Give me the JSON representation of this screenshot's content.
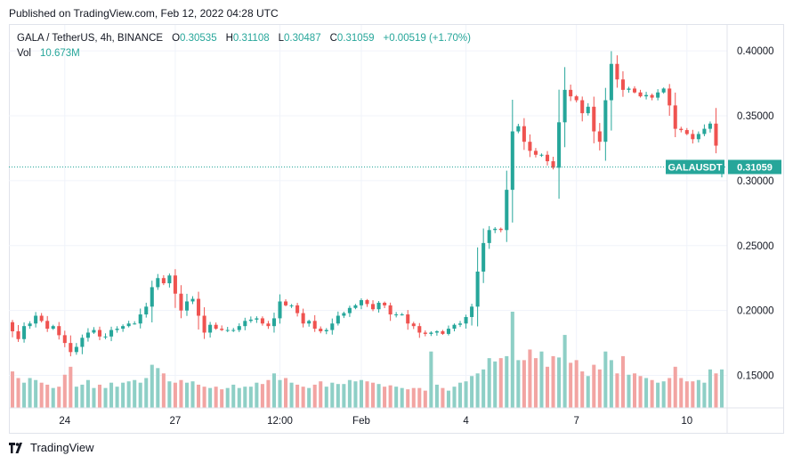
{
  "header": {
    "published": "Published on TradingView.com, Feb 12, 2022 04:28 UTC"
  },
  "legend": {
    "symbol": "GALA / TetherUS, 4h, BINANCE",
    "o_label": "O",
    "o": "0.30535",
    "h_label": "H",
    "h": "0.31108",
    "l_label": "L",
    "l": "0.30487",
    "c_label": "C",
    "c": "0.31059",
    "change": "+0.00519 (+1.70%)",
    "vol_label": "Vol",
    "vol": "10.673M"
  },
  "price_tag": {
    "symbol": "GALAUSDT",
    "price": "0.31059",
    "value": 0.31059
  },
  "footer": {
    "brand": "TradingView"
  },
  "colors": {
    "up": "#26a69a",
    "down": "#ef5350",
    "vol_up": "#8ecfc6",
    "vol_down": "#f2a4a2",
    "grid": "#f0f3fa",
    "text": "#131722"
  },
  "chart_data": {
    "type": "candlestick",
    "ylim": [
      0.125,
      0.42
    ],
    "yticks": [
      "0.40000",
      "0.35000",
      "0.30000",
      "0.25000",
      "0.20000",
      "0.15000"
    ],
    "xticks": [
      "24",
      "27",
      "12:00",
      "Feb",
      "4",
      "7",
      "10"
    ],
    "grid": true,
    "last_price": 0.31059,
    "closes": [
      0.184,
      0.178,
      0.188,
      0.19,
      0.196,
      0.192,
      0.186,
      0.188,
      0.181,
      0.175,
      0.168,
      0.172,
      0.179,
      0.183,
      0.185,
      0.18,
      0.18,
      0.185,
      0.186,
      0.188,
      0.19,
      0.19,
      0.197,
      0.203,
      0.218,
      0.225,
      0.221,
      0.227,
      0.213,
      0.2,
      0.207,
      0.209,
      0.196,
      0.183,
      0.189,
      0.186,
      0.185,
      0.185,
      0.185,
      0.188,
      0.192,
      0.193,
      0.194,
      0.19,
      0.188,
      0.194,
      0.207,
      0.204,
      0.204,
      0.198,
      0.19,
      0.192,
      0.186,
      0.184,
      0.185,
      0.19,
      0.196,
      0.198,
      0.202,
      0.204,
      0.208,
      0.205,
      0.201,
      0.206,
      0.204,
      0.197,
      0.197,
      0.197,
      0.19,
      0.188,
      0.183,
      0.182,
      0.183,
      0.184,
      0.182,
      0.186,
      0.189,
      0.19,
      0.195,
      0.203,
      0.23,
      0.252,
      0.262,
      0.263,
      0.262,
      0.293,
      0.338,
      0.342,
      0.33,
      0.323,
      0.32,
      0.32,
      0.315,
      0.31,
      0.345,
      0.37,
      0.365,
      0.362,
      0.352,
      0.357,
      0.338,
      0.33,
      0.362,
      0.39,
      0.378,
      0.37,
      0.371,
      0.368,
      0.365,
      0.366,
      0.364,
      0.368,
      0.371,
      0.358,
      0.34,
      0.339,
      0.336,
      0.332,
      0.336,
      0.34,
      0.344,
      0.327,
      0.31059
    ],
    "volume_note": "Vol 10.673M",
    "volumes": [
      0.55,
      0.45,
      0.38,
      0.45,
      0.42,
      0.38,
      0.35,
      0.3,
      0.32,
      0.5,
      0.62,
      0.32,
      0.35,
      0.42,
      0.3,
      0.35,
      0.3,
      0.38,
      0.32,
      0.38,
      0.4,
      0.42,
      0.38,
      0.45,
      0.65,
      0.6,
      0.52,
      0.4,
      0.38,
      0.42,
      0.38,
      0.4,
      0.35,
      0.32,
      0.3,
      0.32,
      0.28,
      0.3,
      0.35,
      0.3,
      0.32,
      0.32,
      0.38,
      0.36,
      0.42,
      0.52,
      0.42,
      0.45,
      0.38,
      0.35,
      0.32,
      0.3,
      0.35,
      0.4,
      0.32,
      0.38,
      0.36,
      0.36,
      0.42,
      0.4,
      0.42,
      0.4,
      0.38,
      0.36,
      0.32,
      0.34,
      0.32,
      0.3,
      0.28,
      0.3,
      0.3,
      0.26,
      0.85,
      0.35,
      0.3,
      0.26,
      0.32,
      0.38,
      0.4,
      0.48,
      0.52,
      0.58,
      0.75,
      0.7,
      0.75,
      0.78,
      1.45,
      0.72,
      0.72,
      0.88,
      0.75,
      0.85,
      0.62,
      0.78,
      0.76,
      1.1,
      0.68,
      0.72,
      0.55,
      0.48,
      0.65,
      0.58,
      0.85,
      0.72,
      0.52,
      0.78,
      0.5,
      0.52,
      0.48,
      0.45,
      0.42,
      0.38,
      0.4,
      0.45,
      0.62,
      0.45,
      0.4,
      0.4,
      0.42,
      0.38,
      0.58,
      0.52,
      0.58
    ]
  }
}
